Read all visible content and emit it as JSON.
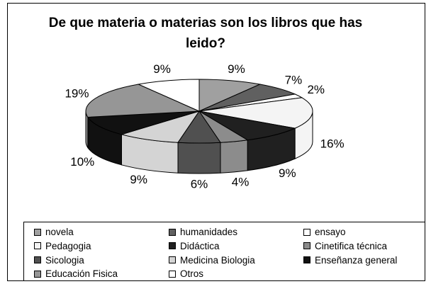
{
  "chart_data": {
    "type": "pie3d",
    "title": "De que materia o materias son los libros que has leido?",
    "categories": [
      "novela",
      "humanidades",
      "ensayo",
      "Pedagogia",
      "Didáctica",
      "Cinetifica técnica",
      "Sicologia",
      "Medicina Biologia",
      "Enseñanza general",
      "Educación Fisica",
      "Otros"
    ],
    "values": [
      9,
      7,
      2,
      16,
      9,
      4,
      6,
      9,
      10,
      19,
      9
    ],
    "value_labels": [
      "9%",
      "7%",
      "2%",
      "16%",
      "9%",
      "4%",
      "6%",
      "9%",
      "10%",
      "19%",
      "9%"
    ],
    "colors": [
      "#a0a0a0",
      "#606060",
      "#ffffff",
      "#f4f4f4",
      "#202020",
      "#8c8c8c",
      "#505050",
      "#d4d4d4",
      "#111111",
      "#969696",
      "#ffffff"
    ],
    "legend": "bottom"
  }
}
